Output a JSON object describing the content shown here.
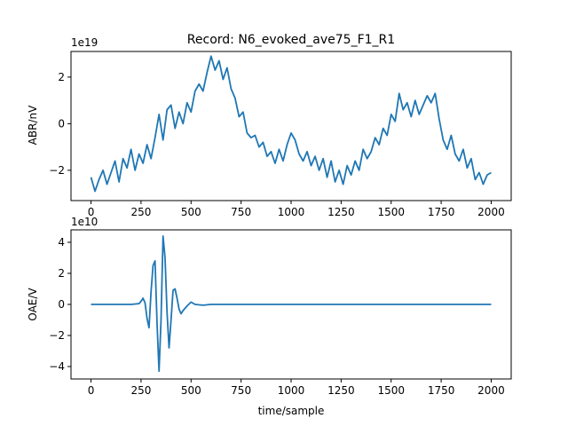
{
  "chart_data": [
    {
      "type": "line",
      "title": "Record: N6_evoked_ave75_F1_R1",
      "xlabel": "",
      "ylabel": "ABR/nV",
      "offset_text": "1e19",
      "xlim": [
        -100,
        2100
      ],
      "ylim": [
        -3.3,
        3.1
      ],
      "xticks": [
        0,
        250,
        500,
        750,
        1000,
        1250,
        1500,
        1750,
        2000
      ],
      "yticks": [
        -2,
        0,
        2
      ],
      "color": "#1f77b4",
      "series": [
        {
          "x": [
            0,
            20,
            40,
            60,
            80,
            100,
            120,
            140,
            160,
            180,
            200,
            220,
            240,
            260,
            280,
            300,
            320,
            340,
            360,
            380,
            400,
            420,
            440,
            460,
            480,
            500,
            520,
            540,
            560,
            580,
            600,
            620,
            640,
            660,
            680,
            700,
            720,
            740,
            760,
            780,
            800,
            820,
            840,
            860,
            880,
            900,
            920,
            940,
            960,
            980,
            1000,
            1020,
            1040,
            1060,
            1080,
            1100,
            1120,
            1140,
            1160,
            1180,
            1200,
            1220,
            1240,
            1260,
            1280,
            1300,
            1320,
            1340,
            1360,
            1380,
            1400,
            1420,
            1440,
            1460,
            1480,
            1500,
            1520,
            1540,
            1560,
            1580,
            1600,
            1620,
            1640,
            1660,
            1680,
            1700,
            1720,
            1740,
            1760,
            1780,
            1800,
            1820,
            1840,
            1860,
            1880,
            1900,
            1920,
            1940,
            1960,
            1980,
            2000
          ],
          "values": [
            -2.3,
            -2.9,
            -2.4,
            -2.0,
            -2.6,
            -2.1,
            -1.6,
            -2.5,
            -1.5,
            -1.9,
            -1.1,
            -2.0,
            -1.3,
            -1.7,
            -0.9,
            -1.5,
            -0.6,
            0.4,
            -0.7,
            0.6,
            0.8,
            -0.2,
            0.5,
            0.0,
            0.9,
            0.5,
            1.4,
            1.7,
            1.4,
            2.2,
            2.9,
            2.3,
            2.7,
            1.9,
            2.4,
            1.5,
            1.1,
            0.3,
            0.5,
            -0.4,
            -0.6,
            -0.5,
            -1.0,
            -0.8,
            -1.4,
            -1.2,
            -1.7,
            -1.1,
            -1.6,
            -0.9,
            -0.4,
            -0.7,
            -1.3,
            -1.6,
            -1.2,
            -1.8,
            -1.4,
            -2.0,
            -1.5,
            -2.3,
            -1.6,
            -2.5,
            -2.0,
            -2.6,
            -1.8,
            -2.2,
            -1.6,
            -2.0,
            -1.1,
            -1.5,
            -1.2,
            -0.6,
            -0.9,
            -0.2,
            -0.5,
            0.4,
            0.1,
            1.3,
            0.6,
            0.9,
            0.3,
            1.0,
            0.4,
            0.8,
            1.2,
            0.9,
            1.3,
            0.2,
            -0.7,
            -1.1,
            -0.5,
            -1.3,
            -1.6,
            -1.1,
            -1.9,
            -1.5,
            -2.4,
            -2.1,
            -2.6,
            -2.2,
            -2.1
          ]
        }
      ]
    },
    {
      "type": "line",
      "title": "",
      "xlabel": "time/sample",
      "ylabel": "OAE/V",
      "offset_text": "1e10",
      "xlim": [
        -100,
        2100
      ],
      "ylim": [
        -4.8,
        4.8
      ],
      "xticks": [
        0,
        250,
        500,
        750,
        1000,
        1250,
        1500,
        1750,
        2000
      ],
      "yticks": [
        -4,
        -2,
        0,
        2,
        4
      ],
      "color": "#1f77b4",
      "series": [
        {
          "x": [
            0,
            200,
            240,
            250,
            260,
            270,
            280,
            290,
            300,
            310,
            320,
            330,
            340,
            350,
            360,
            370,
            380,
            390,
            400,
            410,
            420,
            430,
            440,
            450,
            460,
            480,
            500,
            520,
            560,
            600,
            700,
            800,
            1000,
            1200,
            1400,
            1600,
            1800,
            2000
          ],
          "values": [
            0.0,
            0.0,
            0.05,
            0.2,
            0.4,
            0.1,
            -0.9,
            -1.5,
            0.8,
            2.5,
            2.8,
            -1.2,
            -4.3,
            -1.0,
            4.4,
            3.0,
            -0.5,
            -2.8,
            -1.0,
            0.9,
            1.0,
            0.4,
            -0.3,
            -0.6,
            -0.4,
            -0.1,
            0.15,
            0.0,
            -0.05,
            0.0,
            0.0,
            0.0,
            0.0,
            0.0,
            0.0,
            0.0,
            0.0,
            0.0
          ]
        }
      ]
    }
  ]
}
